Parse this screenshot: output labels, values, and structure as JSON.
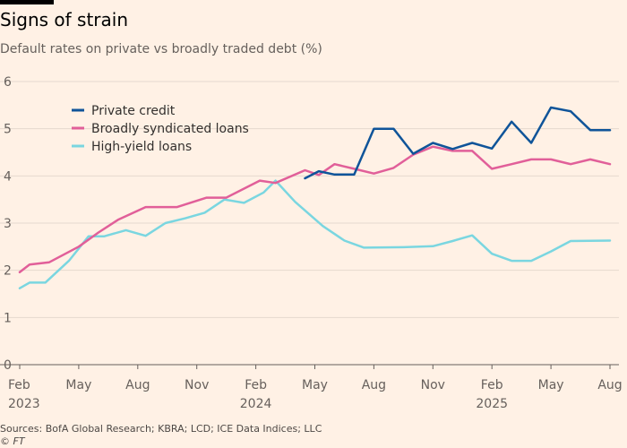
{
  "header": {
    "title": "Signs of strain",
    "subtitle": "Default rates on private vs broadly traded debt (%)"
  },
  "footer": {
    "source": "Sources: BofA Global Research; KBRA; LCD; ICE Data Indices; LLC",
    "copyright_symbol": "©",
    "copyright_brand": "FT"
  },
  "chart_data": {
    "type": "line",
    "title": "Signs of strain",
    "subtitle": "Default rates on private vs broadly traded debt (%)",
    "xlabel": "",
    "ylabel": "",
    "ylim": [
      0,
      6
    ],
    "yticks": [
      0,
      1,
      2,
      3,
      4,
      5,
      6
    ],
    "xlim": [
      0,
      30
    ],
    "grid": true,
    "legend_position": "top-left",
    "x_ticks": [
      {
        "x": 0,
        "label": "Feb",
        "year": "2023"
      },
      {
        "x": 3,
        "label": "May",
        "year": ""
      },
      {
        "x": 6,
        "label": "Aug",
        "year": ""
      },
      {
        "x": 9,
        "label": "Nov",
        "year": ""
      },
      {
        "x": 12,
        "label": "Feb",
        "year": "2024"
      },
      {
        "x": 15,
        "label": "May",
        "year": ""
      },
      {
        "x": 18,
        "label": "Aug",
        "year": ""
      },
      {
        "x": 21,
        "label": "Nov",
        "year": ""
      },
      {
        "x": 24,
        "label": "Feb",
        "year": "2025"
      },
      {
        "x": 27,
        "label": "May",
        "year": ""
      },
      {
        "x": 30,
        "label": "Aug",
        "year": ""
      }
    ],
    "series": [
      {
        "name": "Private credit",
        "color": "#0f5499",
        "points": [
          [
            14.5,
            3.95
          ],
          [
            15.2,
            4.1
          ],
          [
            16.0,
            4.03
          ],
          [
            17.0,
            4.03
          ],
          [
            18.0,
            5.0
          ],
          [
            19.0,
            5.0
          ],
          [
            20.0,
            4.47
          ],
          [
            21.0,
            4.7
          ],
          [
            22.0,
            4.57
          ],
          [
            23.0,
            4.7
          ],
          [
            24.0,
            4.58
          ],
          [
            25.0,
            5.15
          ],
          [
            26.0,
            4.7
          ],
          [
            27.0,
            5.45
          ],
          [
            28.0,
            5.37
          ],
          [
            29.0,
            4.97
          ],
          [
            30.0,
            4.97
          ]
        ]
      },
      {
        "name": "Broadly syndicated loans",
        "color": "#e15f99",
        "points": [
          [
            0,
            1.96
          ],
          [
            0.5,
            2.12
          ],
          [
            1.5,
            2.17
          ],
          [
            3.0,
            2.5
          ],
          [
            4.0,
            2.8
          ],
          [
            5.0,
            3.07
          ],
          [
            6.4,
            3.34
          ],
          [
            8.0,
            3.34
          ],
          [
            9.5,
            3.54
          ],
          [
            10.5,
            3.54
          ],
          [
            12.2,
            3.9
          ],
          [
            13.0,
            3.85
          ],
          [
            14.5,
            4.12
          ],
          [
            15.2,
            4.02
          ],
          [
            16.0,
            4.25
          ],
          [
            17.0,
            4.15
          ],
          [
            18.0,
            4.05
          ],
          [
            19.0,
            4.17
          ],
          [
            20.0,
            4.45
          ],
          [
            21.0,
            4.62
          ],
          [
            22.0,
            4.53
          ],
          [
            23.0,
            4.53
          ],
          [
            24.0,
            4.15
          ],
          [
            25.0,
            4.25
          ],
          [
            26.0,
            4.35
          ],
          [
            27.0,
            4.35
          ],
          [
            28.0,
            4.25
          ],
          [
            29.0,
            4.35
          ],
          [
            30.0,
            4.25
          ]
        ]
      },
      {
        "name": "High-yield loans",
        "color": "#7ad6e0",
        "points": [
          [
            0,
            1.62
          ],
          [
            0.5,
            1.74
          ],
          [
            1.3,
            1.74
          ],
          [
            2.5,
            2.2
          ],
          [
            3.5,
            2.72
          ],
          [
            4.3,
            2.72
          ],
          [
            5.4,
            2.85
          ],
          [
            6.4,
            2.73
          ],
          [
            7.4,
            3.0
          ],
          [
            8.4,
            3.1
          ],
          [
            9.4,
            3.22
          ],
          [
            10.4,
            3.5
          ],
          [
            11.4,
            3.43
          ],
          [
            12.4,
            3.65
          ],
          [
            13.0,
            3.9
          ],
          [
            14.0,
            3.45
          ],
          [
            15.4,
            2.94
          ],
          [
            16.5,
            2.63
          ],
          [
            17.5,
            2.48
          ],
          [
            19.5,
            2.49
          ],
          [
            21.0,
            2.51
          ],
          [
            22.0,
            2.62
          ],
          [
            23.0,
            2.74
          ],
          [
            24.0,
            2.35
          ],
          [
            25.0,
            2.2
          ],
          [
            26.0,
            2.2
          ],
          [
            27.0,
            2.4
          ],
          [
            28.0,
            2.62
          ],
          [
            30.0,
            2.63
          ]
        ]
      }
    ]
  }
}
